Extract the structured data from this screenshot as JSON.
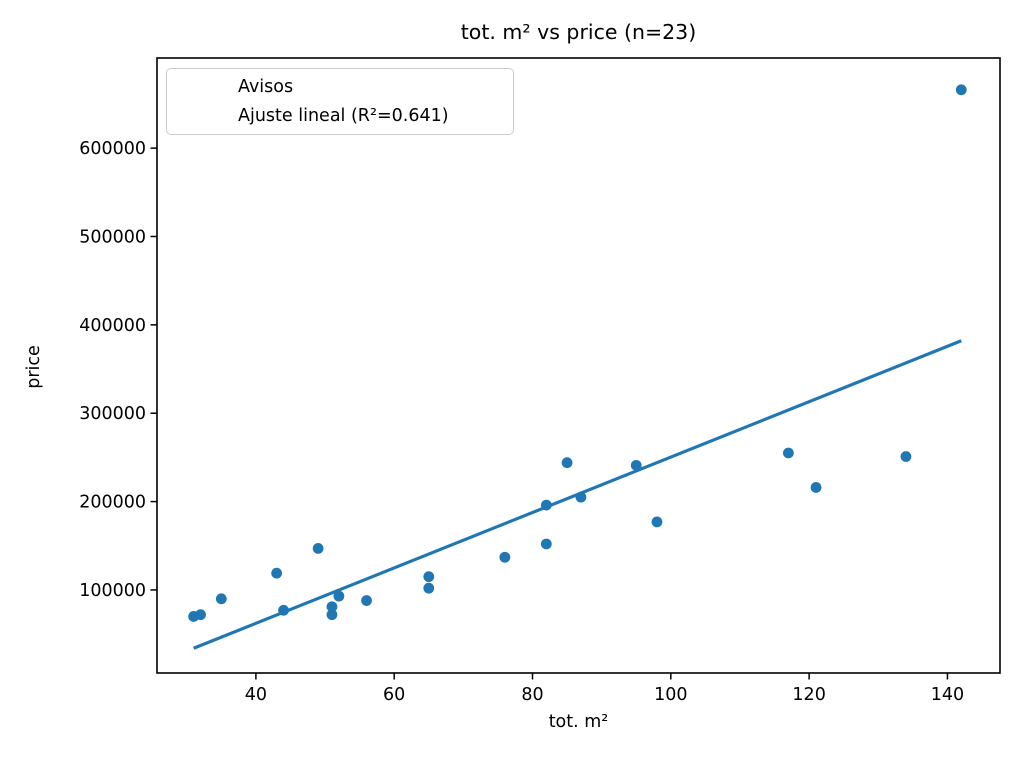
{
  "page": {
    "background": "#ffffff"
  },
  "chart_data": {
    "type": "scatter",
    "title": "tot. m² vs price (n=23)",
    "xlabel": "tot. m²",
    "ylabel": "price",
    "n_points": 23,
    "xlim": [
      25.7,
      147.6
    ],
    "ylim": [
      6000,
      702000
    ],
    "x_ticks": [
      40,
      60,
      80,
      100,
      120,
      140
    ],
    "y_ticks": [
      100000,
      200000,
      300000,
      400000,
      500000,
      600000
    ],
    "grid": false,
    "legend_position": "upper-left",
    "marker_color": "#1f77b4",
    "line_color": "#1f77b4",
    "axis_color": "#000000",
    "series": [
      {
        "name": "Avisos",
        "kind": "scatter",
        "points": [
          [
            31,
            70000
          ],
          [
            32,
            72000
          ],
          [
            35,
            90000
          ],
          [
            43,
            119000
          ],
          [
            44,
            77000
          ],
          [
            49,
            147000
          ],
          [
            51,
            72000
          ],
          [
            51,
            81000
          ],
          [
            52,
            93000
          ],
          [
            56,
            88000
          ],
          [
            65,
            115000
          ],
          [
            65,
            102000
          ],
          [
            76,
            137000
          ],
          [
            82,
            152000
          ],
          [
            82,
            196000
          ],
          [
            85,
            244000
          ],
          [
            87,
            205000
          ],
          [
            95,
            241000
          ],
          [
            98,
            177000
          ],
          [
            117,
            255000
          ],
          [
            121,
            216000
          ],
          [
            134,
            251000
          ],
          [
            142,
            666000
          ]
        ]
      },
      {
        "name": "Ajuste lineal (R²=0.641)",
        "kind": "line",
        "r_squared": 0.641,
        "points": [
          [
            31,
            34000
          ],
          [
            142,
            382000
          ]
        ]
      }
    ]
  }
}
